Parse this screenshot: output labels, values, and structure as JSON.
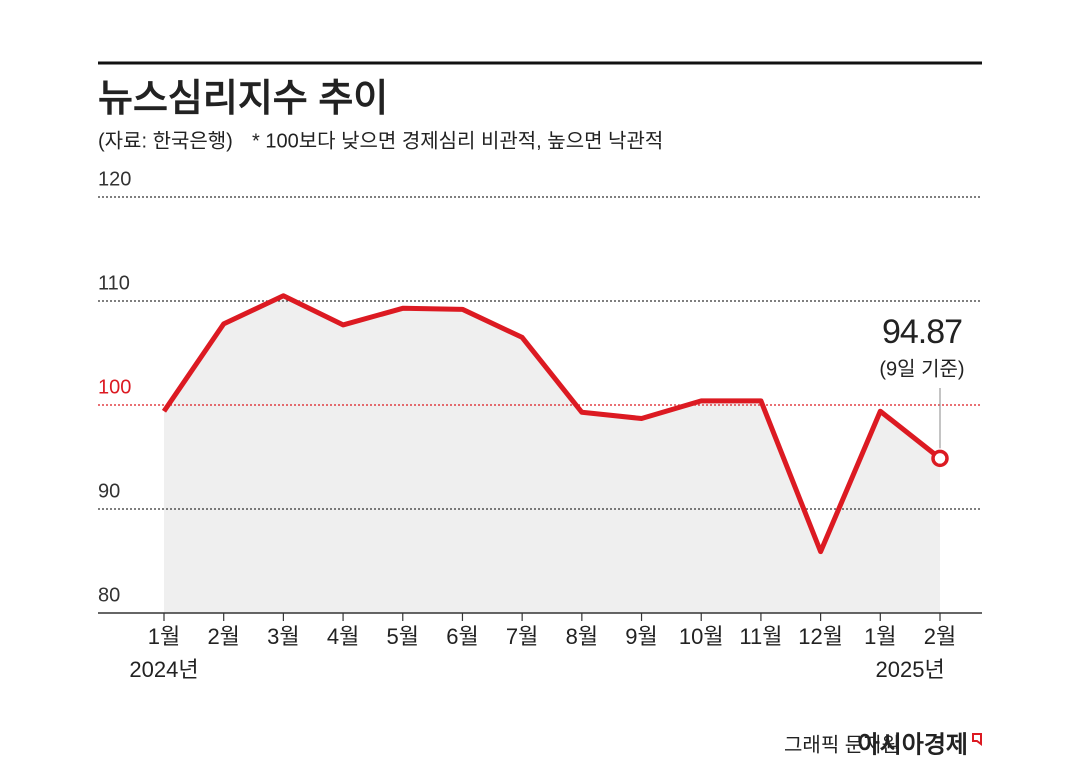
{
  "chart_data": {
    "type": "line",
    "title": "뉴스심리지수 추이",
    "source": "(자료: 한국은행)",
    "note": "* 100보다 낮으면 경제심리 비관적, 높으면 낙관적",
    "categories": [
      "1월",
      "2월",
      "3월",
      "4월",
      "5월",
      "6월",
      "7월",
      "8월",
      "9월",
      "10월",
      "11월",
      "12월",
      "1월",
      "2월"
    ],
    "years": [
      "2024년",
      "2025년"
    ],
    "series": [
      {
        "name": "뉴스심리지수",
        "color": "#dc1a22",
        "values": [
          99.4,
          107.8,
          110.5,
          107.7,
          109.3,
          109.2,
          106.5,
          99.3,
          98.7,
          100.4,
          100.4,
          85.9,
          99.4,
          94.87
        ]
      }
    ],
    "area_color": "#efefef",
    "annotation": "(9일 기준)",
    "ylim": [
      80,
      120
    ],
    "yticks": [
      80,
      90,
      100,
      110,
      120
    ],
    "ytick_colors": [
      "#333333",
      "#333333",
      "#dc1a22",
      "#333333",
      "#333333"
    ],
    "grid": true,
    "credit": "그래픽 문지원",
    "brand": "아시아경제"
  }
}
